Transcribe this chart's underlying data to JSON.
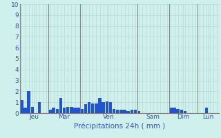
{
  "xlabel": "Précipitations 24h ( mm )",
  "ylim": [
    0,
    10
  ],
  "bar_color": "#2255cc",
  "bg_color": "#cff0ec",
  "grid_minor_color": "#b8d8d4",
  "grid_major_color": "#a0c0bc",
  "day_line_color": "#808080",
  "tick_color": "#3355aa",
  "day_labels": [
    "Jeu",
    "Mar",
    "Ven",
    "Sam",
    "Dim",
    "Lun"
  ],
  "n_bars": 56,
  "bar_values": [
    1.2,
    0.5,
    2.0,
    0.6,
    0.0,
    1.0,
    0.0,
    0.0,
    0.3,
    0.5,
    0.4,
    1.4,
    0.5,
    0.6,
    0.6,
    0.5,
    0.5,
    0.4,
    0.8,
    1.0,
    0.9,
    0.9,
    1.4,
    1.0,
    1.1,
    1.0,
    0.4,
    0.3,
    0.3,
    0.3,
    0.2,
    0.3,
    0.3,
    0.2,
    0.0,
    0.0,
    0.0,
    0.0,
    0.0,
    0.0,
    0.0,
    0.0,
    0.5,
    0.5,
    0.4,
    0.3,
    0.2,
    0.0,
    0.0,
    0.0,
    0.0,
    0.0,
    0.5,
    0.0,
    0.0,
    0.0
  ],
  "day_sep_positions": [
    -0.5,
    7.5,
    16.5,
    32.5,
    41.5,
    49.5,
    55.5
  ],
  "day_tick_positions": [
    3.5,
    12.0,
    24.5,
    37.0,
    45.5,
    52.5
  ],
  "xlabel_fontsize": 7.5,
  "tick_fontsize": 6.5
}
